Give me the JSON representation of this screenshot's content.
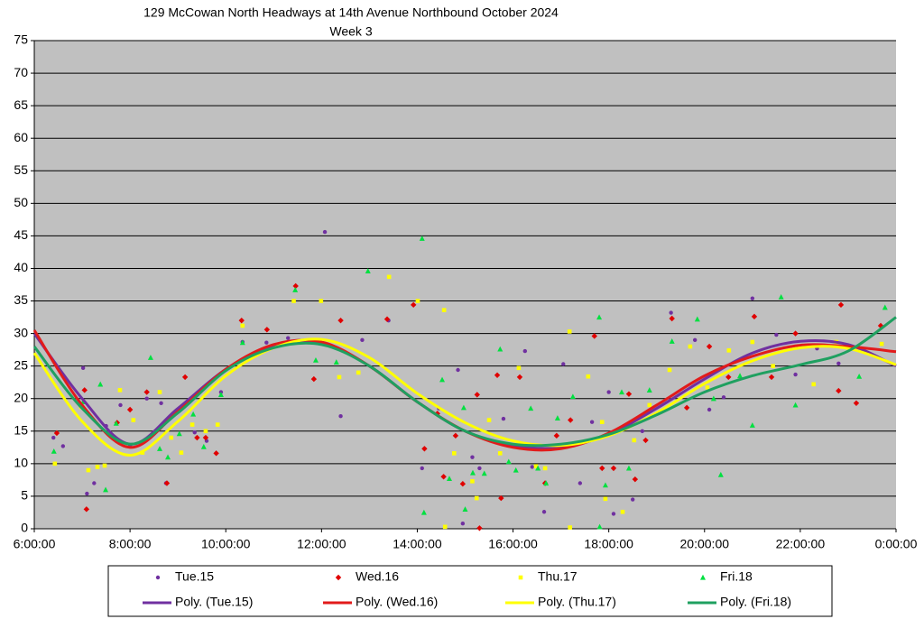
{
  "chart_data": {
    "type": "scatter",
    "title": "129 McCowan North Headways at 14th Avenue Northbound October 2024",
    "subtitle": "Week 3",
    "xlim": [
      6,
      24
    ],
    "ylim": [
      0,
      75
    ],
    "xticks": [
      {
        "value": 6,
        "label": "6:00:00"
      },
      {
        "value": 8,
        "label": "8:00:00"
      },
      {
        "value": 10,
        "label": "10:00:00"
      },
      {
        "value": 12,
        "label": "12:00:00"
      },
      {
        "value": 14,
        "label": "14:00:00"
      },
      {
        "value": 16,
        "label": "16:00:00"
      },
      {
        "value": 18,
        "label": "18:00:00"
      },
      {
        "value": 20,
        "label": "20:00:00"
      },
      {
        "value": 22,
        "label": "22:00:00"
      },
      {
        "value": 24,
        "label": "0:00:00"
      }
    ],
    "yticks": [
      0,
      5,
      10,
      15,
      20,
      25,
      30,
      35,
      40,
      45,
      50,
      55,
      60,
      65,
      70,
      75
    ],
    "grid": true,
    "series": [
      {
        "name": "Tue.15",
        "type": "scatter",
        "marker": "circle",
        "color": "#7030a0",
        "x": [
          6.4,
          6.6,
          7.02,
          7.1,
          7.25,
          7.5,
          7.8,
          8.0,
          8.35,
          8.65,
          8.75,
          9.35,
          9.6,
          9.9,
          10.35,
          10.85,
          11.3,
          12.07,
          12.4,
          12.85,
          13.4,
          14.1,
          14.45,
          14.85,
          14.95,
          15.15,
          15.3,
          15.8,
          16.25,
          16.4,
          16.65,
          17.05,
          17.4,
          17.65,
          18.0,
          18.1,
          18.5,
          18.7,
          19.3,
          19.8,
          20.1,
          20.4,
          21.0,
          21.5,
          21.9,
          22.35,
          22.8,
          23.7
        ],
        "values": [
          14,
          12.7,
          24.7,
          5.4,
          7,
          15.8,
          19,
          12.7,
          20,
          19.3,
          7,
          14.8,
          13.5,
          21,
          28.7,
          28.6,
          29.3,
          45.6,
          17.3,
          29,
          32,
          9.3,
          18.5,
          24.4,
          0.8,
          11,
          9.3,
          16.9,
          27.3,
          9.5,
          2.6,
          25.3,
          7,
          16.4,
          21,
          2.3,
          4.5,
          15,
          33.2,
          29,
          18.3,
          20.2,
          35.4,
          29.8,
          23.7,
          27.7,
          25.4,
          28.4
        ]
      },
      {
        "name": "Wed.16",
        "type": "scatter",
        "marker": "diamond",
        "color": "#e00000",
        "x": [
          6.47,
          7.05,
          7.09,
          7.73,
          8.0,
          8.35,
          8.77,
          9.15,
          9.4,
          9.58,
          9.8,
          10.33,
          10.86,
          11.46,
          11.84,
          12.4,
          13.37,
          13.92,
          14.15,
          14.42,
          14.55,
          14.8,
          14.95,
          15.25,
          15.3,
          15.67,
          15.75,
          16.14,
          16.67,
          16.91,
          17.2,
          17.7,
          17.86,
          18.1,
          18.42,
          18.55,
          18.77,
          19.32,
          19.63,
          20.1,
          20.5,
          21.04,
          21.4,
          21.9,
          22.8,
          22.85,
          23.17,
          23.68
        ],
        "values": [
          14.7,
          21.3,
          3,
          16.3,
          18.3,
          21,
          7,
          23.3,
          14,
          14,
          11.6,
          32,
          30.6,
          37.3,
          23,
          32,
          32.2,
          34.4,
          12.3,
          17.7,
          8,
          14.3,
          6.9,
          20.6,
          0.1,
          23.6,
          4.7,
          23.3,
          7,
          14.3,
          16.7,
          29.6,
          9.3,
          9.3,
          20.7,
          7.6,
          13.6,
          32.3,
          18.6,
          28,
          23.3,
          32.6,
          23.3,
          30,
          21.2,
          34.4,
          19.3,
          31.2
        ]
      },
      {
        "name": "Thu.17",
        "type": "scatter",
        "marker": "square",
        "color": "#ffff00",
        "x": [
          6.43,
          6.98,
          7.13,
          7.32,
          7.47,
          7.79,
          8.07,
          8.26,
          8.62,
          8.86,
          9.07,
          9.3,
          9.58,
          9.83,
          10.35,
          11.42,
          11.99,
          12.37,
          12.77,
          13.41,
          14.01,
          14.56,
          14.58,
          14.77,
          15.15,
          15.24,
          15.5,
          15.73,
          16.12,
          16.48,
          16.67,
          17.18,
          17.19,
          17.57,
          17.86,
          17.93,
          18.29,
          18.53,
          18.85,
          19.27,
          19.7,
          20.06,
          20.51,
          21.0,
          21.43,
          22.28,
          22.75,
          23.7
        ],
        "values": [
          10,
          18.7,
          9,
          9.5,
          9.7,
          21.3,
          16.7,
          11.7,
          21,
          14,
          11.7,
          16,
          15,
          16,
          31.2,
          35,
          35,
          23.3,
          24,
          38.7,
          35,
          33.6,
          0.3,
          11.6,
          7.3,
          4.7,
          16.7,
          11.6,
          24.7,
          9.6,
          9.3,
          30.3,
          0.2,
          23.4,
          16.4,
          4.6,
          2.6,
          13.6,
          19,
          24.4,
          28,
          21.7,
          27.4,
          28.7,
          25,
          22.2,
          28.7,
          28.4
        ]
      },
      {
        "name": "Fri.18",
        "type": "scatter",
        "marker": "triangle",
        "color": "#00e040",
        "x": [
          6.41,
          7.02,
          7.38,
          7.49,
          7.71,
          8.43,
          8.62,
          8.79,
          9.03,
          9.32,
          9.54,
          9.9,
          10.35,
          11.45,
          11.88,
          12.31,
          12.97,
          14.1,
          14.14,
          14.52,
          14.67,
          14.97,
          15.0,
          15.16,
          15.4,
          15.73,
          15.91,
          16.06,
          16.37,
          16.52,
          16.69,
          16.93,
          17.25,
          17.8,
          17.81,
          17.93,
          18.27,
          18.42,
          18.85,
          19.32,
          19.85,
          20.19,
          20.34,
          20.74,
          21.0,
          21.6,
          21.9,
          23.23,
          23.77
        ],
        "values": [
          11.9,
          19.5,
          22.2,
          6,
          16.2,
          26.3,
          12.3,
          11,
          14.6,
          17.6,
          12.6,
          20.6,
          28.6,
          36.7,
          25.9,
          25.6,
          39.6,
          44.6,
          2.5,
          22.9,
          7.7,
          18.6,
          3,
          8.6,
          8.5,
          27.6,
          10.3,
          9,
          18.5,
          9.3,
          7,
          17,
          20.3,
          32.5,
          0.3,
          6.7,
          21,
          9.3,
          21.3,
          28.8,
          32.2,
          20,
          8.3,
          23.5,
          15.9,
          35.6,
          19,
          23.4,
          34
        ]
      },
      {
        "name": "Poly. (Tue.15)",
        "type": "line",
        "color": "#7030a0",
        "x": [
          6,
          7,
          8,
          9,
          10,
          11,
          12,
          13,
          14,
          15,
          16,
          17,
          18,
          19,
          20,
          21,
          22,
          23,
          24
        ],
        "values": [
          30,
          20,
          13,
          18.5,
          24.5,
          28,
          28.5,
          25,
          19.5,
          15,
          12.8,
          12.5,
          14.5,
          18.5,
          23,
          27,
          28.8,
          28.3,
          25
        ]
      },
      {
        "name": "Poly. (Wed.16)",
        "type": "line",
        "color": "#e21b1b",
        "x": [
          6,
          7,
          8,
          9,
          10,
          11,
          12,
          13,
          14,
          15,
          16,
          17,
          18,
          19,
          20,
          21,
          22,
          23,
          24
        ],
        "values": [
          30.5,
          19,
          12.5,
          18,
          24.5,
          28.3,
          28.7,
          25,
          19.5,
          15,
          12.5,
          12.3,
          14.7,
          19,
          23.5,
          26.5,
          28.2,
          28,
          27.2
        ]
      },
      {
        "name": "Poly. (Thu.17)",
        "type": "line",
        "color": "#ffff00",
        "x": [
          6,
          7,
          8,
          9,
          10,
          11,
          12,
          13,
          14,
          15,
          16,
          17,
          18,
          19,
          20,
          21,
          22,
          23,
          24
        ],
        "values": [
          27,
          16.5,
          11.3,
          16.5,
          23.5,
          27.8,
          29.1,
          26.3,
          20.8,
          16.3,
          13.5,
          12.8,
          14.3,
          17.8,
          22.3,
          25.8,
          27.8,
          27.7,
          25.2
        ]
      },
      {
        "name": "Poly. (Fri.18)",
        "type": "line",
        "color": "#1fa060",
        "x": [
          6,
          7,
          8,
          9,
          10,
          11,
          12,
          13,
          14,
          15,
          16,
          17,
          18,
          19,
          20,
          21,
          22,
          23,
          24
        ],
        "values": [
          28,
          18.5,
          13,
          17.8,
          24.3,
          27.8,
          28.3,
          25,
          19.5,
          15,
          13,
          13,
          14.5,
          17.5,
          21,
          23.5,
          25.2,
          27.3,
          32.5
        ]
      }
    ]
  }
}
